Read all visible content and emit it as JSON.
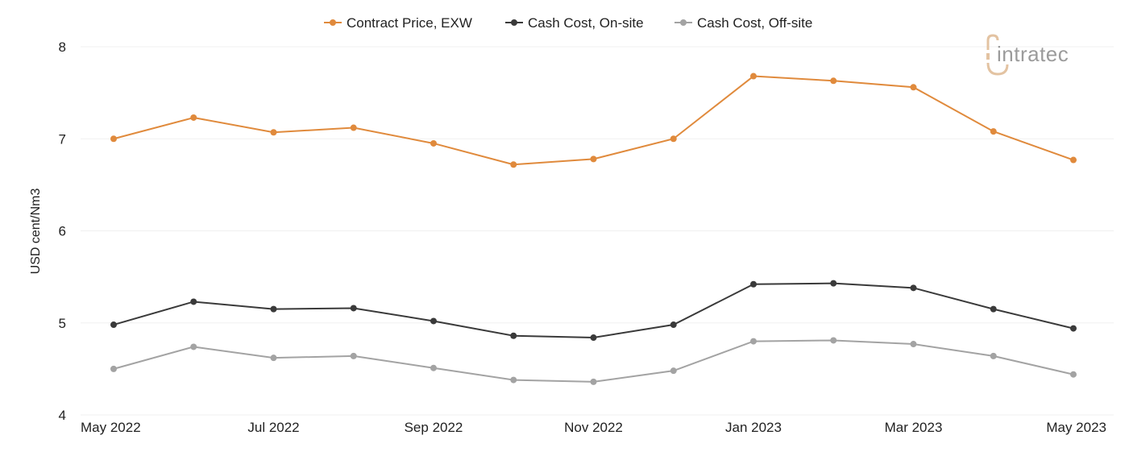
{
  "chart_data": {
    "type": "line",
    "x": [
      "May 2022",
      "Jun 2022",
      "Jul 2022",
      "Aug 2022",
      "Sep 2022",
      "Oct 2022",
      "Nov 2022",
      "Dec 2022",
      "Jan 2023",
      "Feb 2023",
      "Mar 2023",
      "Apr 2023",
      "May 2023"
    ],
    "x_tick_labels": [
      "May 2022",
      "Jul 2022",
      "Sep 2022",
      "Nov 2022",
      "Jan 2023",
      "Mar 2023",
      "May 2023"
    ],
    "series": [
      {
        "name": "Contract Price, EXW",
        "color": "#e08a3c",
        "values": [
          7.0,
          7.23,
          7.07,
          7.12,
          6.95,
          6.72,
          6.78,
          7.0,
          7.68,
          7.63,
          7.56,
          7.08,
          6.77
        ]
      },
      {
        "name": "Cash Cost, On-site",
        "color": "#3a3a3a",
        "values": [
          4.98,
          5.23,
          5.15,
          5.16,
          5.02,
          4.86,
          4.84,
          4.98,
          5.42,
          5.43,
          5.38,
          5.15,
          4.94
        ]
      },
      {
        "name": "Cash Cost, Off-site",
        "color": "#a3a3a3",
        "values": [
          4.5,
          4.74,
          4.62,
          4.64,
          4.51,
          4.38,
          4.36,
          4.48,
          4.8,
          4.81,
          4.77,
          4.64,
          4.44
        ]
      }
    ],
    "ylabel": "USD cent/Nm3",
    "xlabel": "",
    "ylim": [
      4,
      8
    ],
    "y_ticks": [
      4,
      5,
      6,
      7,
      8
    ],
    "grid": true,
    "legend_position": "top-center"
  },
  "logo": {
    "text": "intratec",
    "mark_color": "#e3c3a2"
  }
}
